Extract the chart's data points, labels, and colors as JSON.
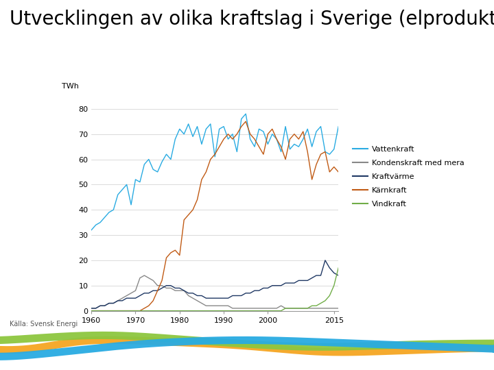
{
  "title": "Utvecklingen av olika kraftslag i Sverige (elproduktion)",
  "ylabel": "TWh",
  "source": "Källa: Svensk Energi",
  "xlim": [
    1960,
    2016
  ],
  "ylim": [
    0,
    85
  ],
  "yticks": [
    0,
    10,
    20,
    30,
    40,
    50,
    60,
    70,
    80
  ],
  "xticks": [
    1960,
    1970,
    1980,
    1990,
    2000,
    2015
  ],
  "colors": {
    "Vattenkraft": "#29ABE2",
    "Kondenskraft med mera": "#888888",
    "Kraftvärme": "#1F3864",
    "Kärnkraft": "#C05A14",
    "Vindkraft": "#70AD47"
  },
  "background": "#ffffff",
  "vattenkraft": [
    32,
    34,
    35,
    37,
    39,
    40,
    46,
    48,
    50,
    42,
    52,
    51,
    58,
    60,
    56,
    55,
    59,
    62,
    60,
    68,
    72,
    70,
    74,
    69,
    73,
    66,
    72,
    74,
    61,
    72,
    73,
    68,
    70,
    63,
    76,
    78,
    68,
    65,
    72,
    71,
    66,
    70,
    68,
    63,
    73,
    64,
    66,
    65,
    68,
    72,
    65,
    71,
    73,
    63,
    62,
    64,
    73
  ],
  "kondenskraft": [
    1,
    1,
    2,
    2,
    3,
    3,
    4,
    5,
    6,
    7,
    8,
    13,
    14,
    13,
    12,
    10,
    10,
    9,
    9,
    8,
    8,
    8,
    6,
    5,
    4,
    3,
    2,
    2,
    2,
    2,
    2,
    2,
    1,
    1,
    1,
    1,
    1,
    1,
    1,
    1,
    1,
    1,
    1,
    2,
    1,
    1,
    1,
    1,
    1,
    1,
    1,
    1,
    1,
    1,
    1,
    1,
    1
  ],
  "kraftvarme": [
    1,
    1,
    2,
    2,
    3,
    3,
    4,
    4,
    5,
    5,
    5,
    6,
    7,
    7,
    8,
    8,
    9,
    10,
    10,
    9,
    9,
    8,
    7,
    7,
    6,
    6,
    5,
    5,
    5,
    5,
    5,
    5,
    6,
    6,
    6,
    7,
    7,
    8,
    8,
    9,
    9,
    10,
    10,
    10,
    11,
    11,
    11,
    12,
    12,
    12,
    13,
    14,
    14,
    20,
    17,
    15,
    14
  ],
  "karnkraft": [
    0,
    0,
    0,
    0,
    0,
    0,
    0,
    0,
    0,
    0,
    0,
    0,
    1,
    2,
    4,
    8,
    12,
    21,
    23,
    24,
    22,
    36,
    38,
    40,
    44,
    52,
    55,
    60,
    62,
    65,
    68,
    70,
    68,
    70,
    73,
    75,
    70,
    68,
    65,
    62,
    70,
    72,
    68,
    65,
    60,
    68,
    70,
    68,
    71,
    63,
    52,
    58,
    62,
    63,
    55,
    57,
    55
  ],
  "vindkraft": [
    0,
    0,
    0,
    0,
    0,
    0,
    0,
    0,
    0,
    0,
    0,
    0,
    0,
    0,
    0,
    0,
    0,
    0,
    0,
    0,
    0,
    0,
    0,
    0,
    0,
    0,
    0,
    0,
    0,
    0,
    0,
    0,
    0,
    0,
    0,
    0,
    0,
    0,
    0,
    0,
    0,
    0,
    0,
    0,
    1,
    1,
    1,
    1,
    1,
    1,
    2,
    2,
    3,
    4,
    6,
    10,
    17
  ],
  "years_start": 1960,
  "legend_entries": [
    "Vattenkraft",
    "Kondenskraft med mera",
    "Kraftvärme",
    "Kärnkraft",
    "Vindkraft"
  ],
  "title_fontsize": 20,
  "axis_fontsize": 8,
  "label_fontsize": 8,
  "source_fontsize": 7
}
